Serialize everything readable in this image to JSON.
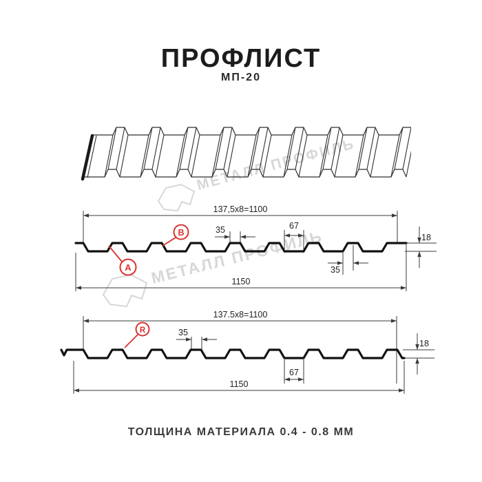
{
  "header": {
    "title": "ПРОФЛИСТ",
    "subtitle": "МП-20"
  },
  "footer": {
    "text": "ТОЛЩИНА МАТЕРИАЛА 0.4 - 0.8 ММ"
  },
  "watermark": {
    "text": "МЕТАЛЛ ПРОФИЛЬ",
    "color": "#d7d7d7"
  },
  "colors": {
    "drawing_line": "#2f2f2f",
    "profile_line": "#111111",
    "dimension_line": "#3a3a3a",
    "accent_red": "#d9322e",
    "text": "#222222"
  },
  "diagram_front": {
    "top_dim": "137,5x8=1100",
    "rib_top_width": "35",
    "valley_width": "67",
    "height": "18",
    "rib_bottom_width": "35",
    "total_width": "1150",
    "label_a": "A",
    "label_b": "B"
  },
  "diagram_reverse": {
    "top_dim": "137.5x8=1100",
    "rib_top_width": "35",
    "valley_width": "67",
    "height": "18",
    "total_width": "1150",
    "label_r": "R"
  }
}
